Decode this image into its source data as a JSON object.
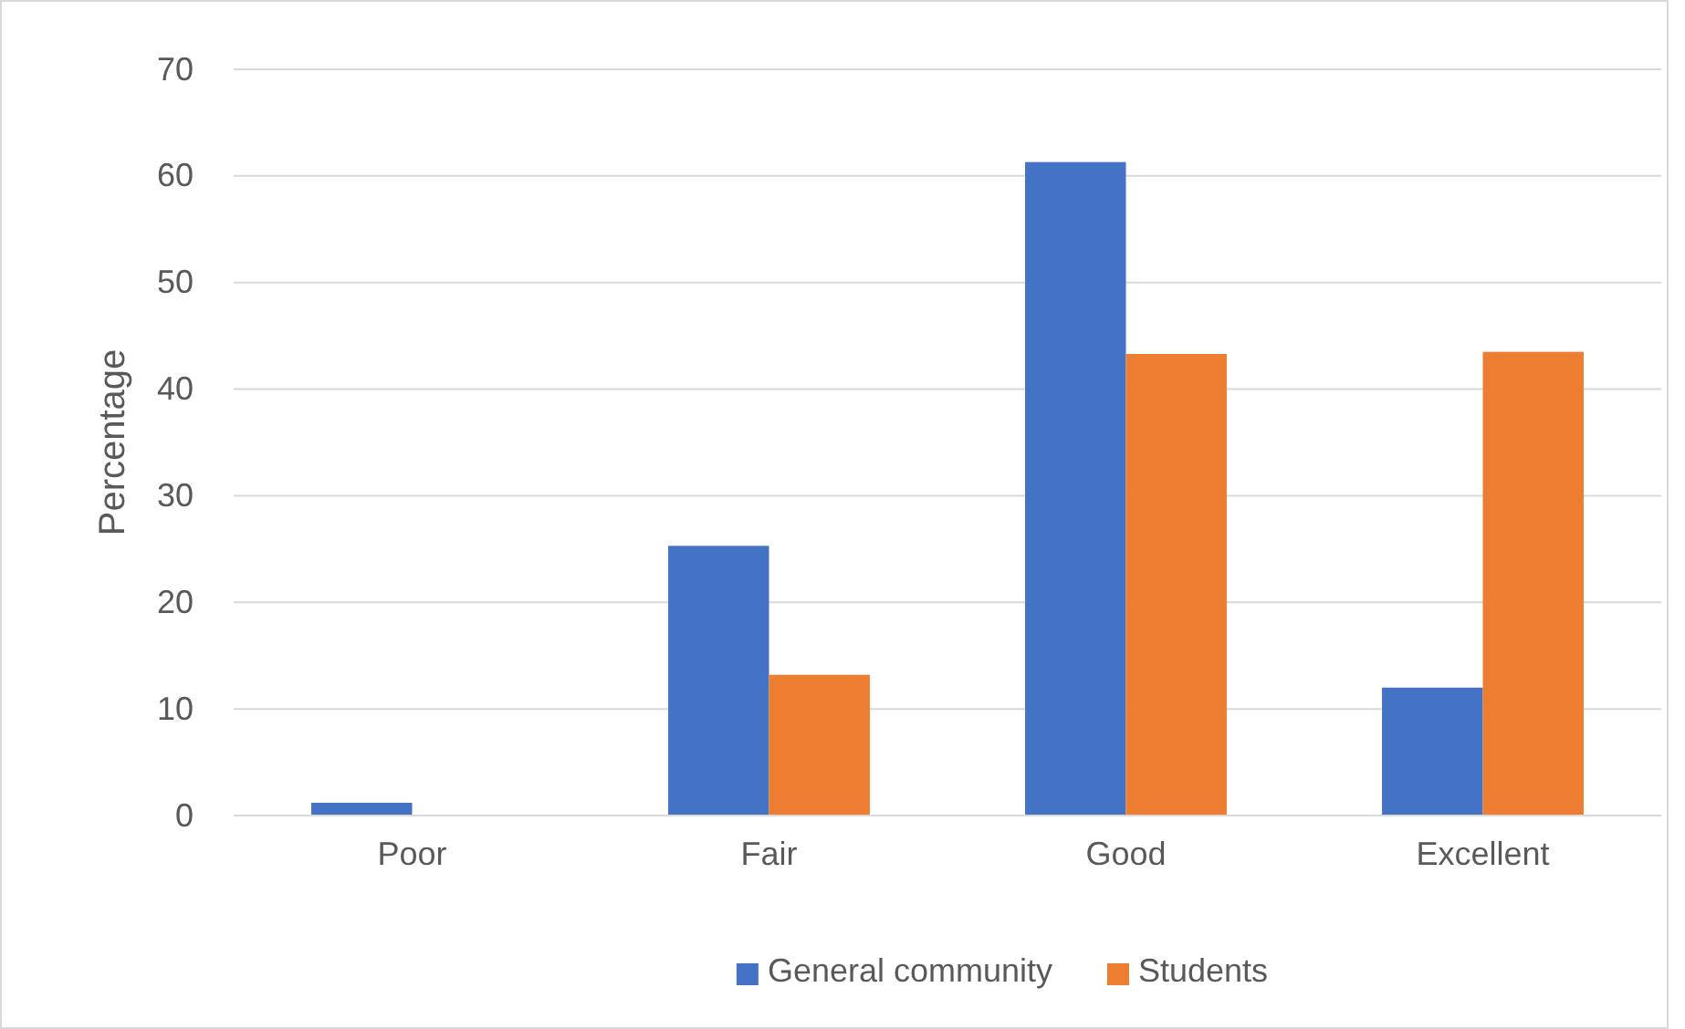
{
  "chart_data": {
    "type": "bar",
    "ylabel": "Percentage",
    "categories": [
      "Poor",
      "Fair",
      "Good",
      "Excellent"
    ],
    "series": [
      {
        "name": "General community",
        "color": "#4472c4",
        "values": [
          1.2,
          25.3,
          61.3,
          12.0
        ]
      },
      {
        "name": "Students",
        "color": "#ed7d31",
        "values": [
          0,
          13.2,
          43.3,
          43.5
        ]
      }
    ],
    "ylim": [
      0,
      70
    ],
    "yticks": [
      0,
      10,
      20,
      30,
      40,
      50,
      60,
      70
    ],
    "grid": "y",
    "legend": "bottom"
  }
}
